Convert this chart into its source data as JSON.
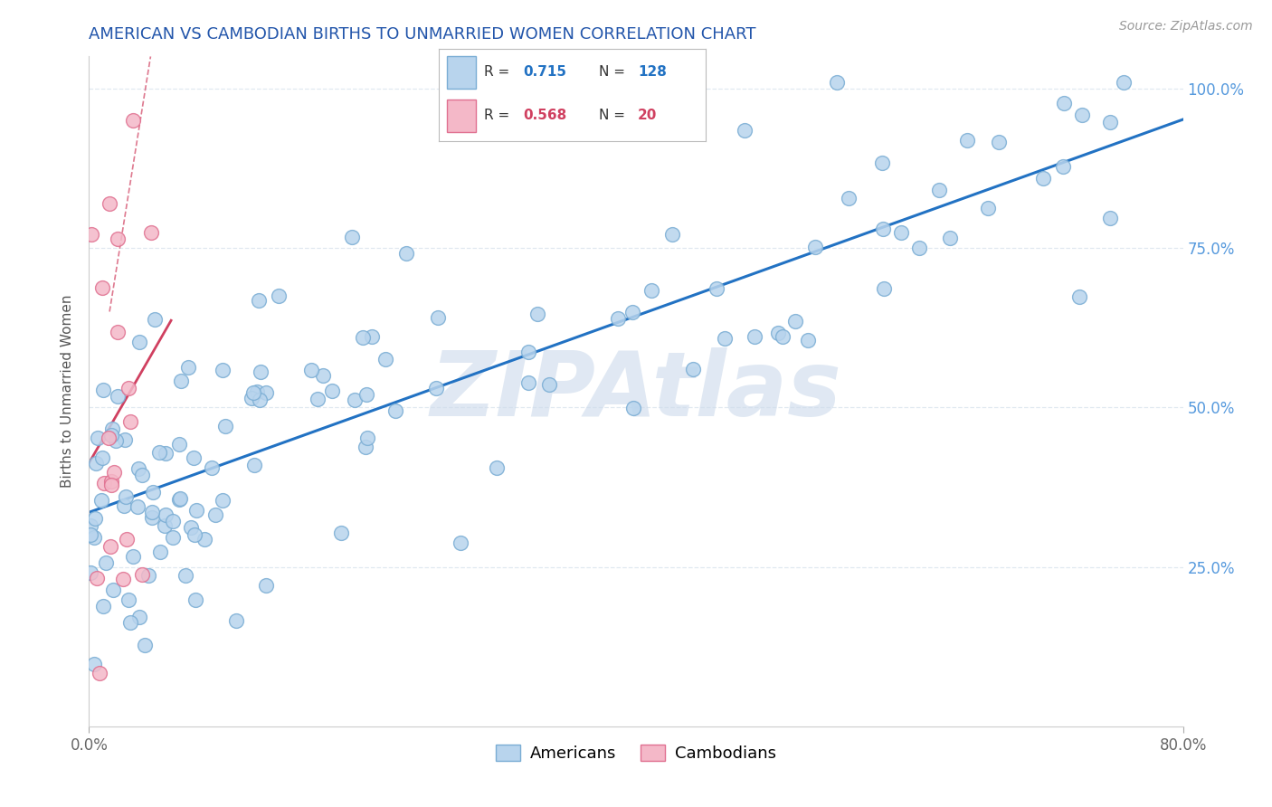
{
  "title": "AMERICAN VS CAMBODIAN BIRTHS TO UNMARRIED WOMEN CORRELATION CHART",
  "source": "Source: ZipAtlas.com",
  "ylabel": "Births to Unmarried Women",
  "xmin": 0.0,
  "xmax": 80.0,
  "ymin": 0.0,
  "ymax": 105.0,
  "american_R": 0.715,
  "american_N": 128,
  "cambodian_R": 0.568,
  "cambodian_N": 20,
  "american_color": "#b8d4ed",
  "american_edge_color": "#7aadd4",
  "cambodian_color": "#f4b8c8",
  "cambodian_edge_color": "#e07090",
  "trend_american_color": "#2272c3",
  "trend_cambodian_color": "#d04060",
  "watermark_text": "ZIPAtlas",
  "watermark_color": "#ccdaeb",
  "background_color": "#ffffff",
  "title_color": "#2255aa",
  "title_fontsize": 13,
  "legend_R_color_american": "#2272c3",
  "legend_R_color_cambodian": "#d04060",
  "grid_color": "#e0e8f0",
  "grid_style": "--"
}
